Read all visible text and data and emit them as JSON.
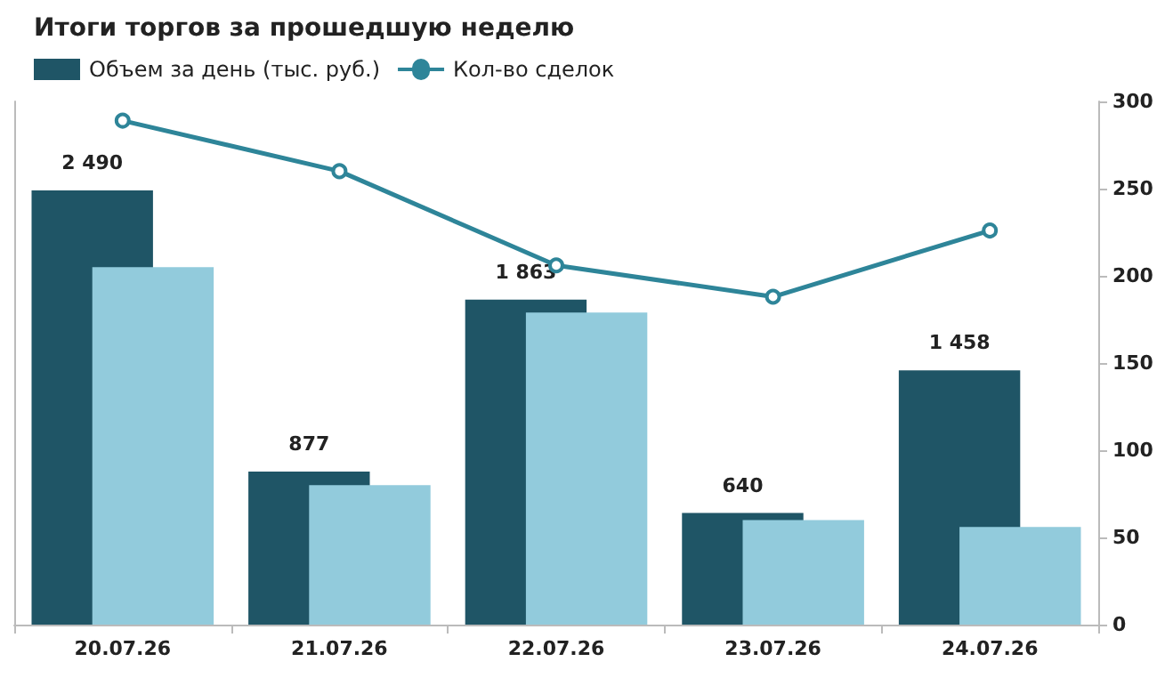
{
  "chart_data": {
    "type": "bar",
    "title": "Итоги торгов за прошедшую неделю",
    "categories": [
      "20.07.26",
      "21.07.26",
      "22.07.26",
      "23.07.26",
      "24.07.26"
    ],
    "series": [
      {
        "name": "Объем за день (тыс. руб.)",
        "color": "#1f5566",
        "values": [
          2490,
          877,
          1863,
          640,
          1458
        ],
        "value_labels": [
          "2 490",
          "877",
          "1 863",
          "640",
          "1 458"
        ]
      },
      {
        "color": "#92cbdc",
        "values": [
          2050,
          800,
          1790,
          600,
          560
        ]
      },
      {
        "name": "Кол-во сделок",
        "type": "line",
        "axis": "y2",
        "color": "#2e8599",
        "marker": "circle",
        "values": [
          289,
          260,
          206,
          188,
          226
        ]
      }
    ],
    "ylim": [
      0,
      3000
    ],
    "y2lim": [
      0,
      300
    ],
    "y2ticks": [
      0,
      50,
      100,
      150,
      200,
      250,
      300
    ],
    "legend": "top left",
    "grid": false
  }
}
